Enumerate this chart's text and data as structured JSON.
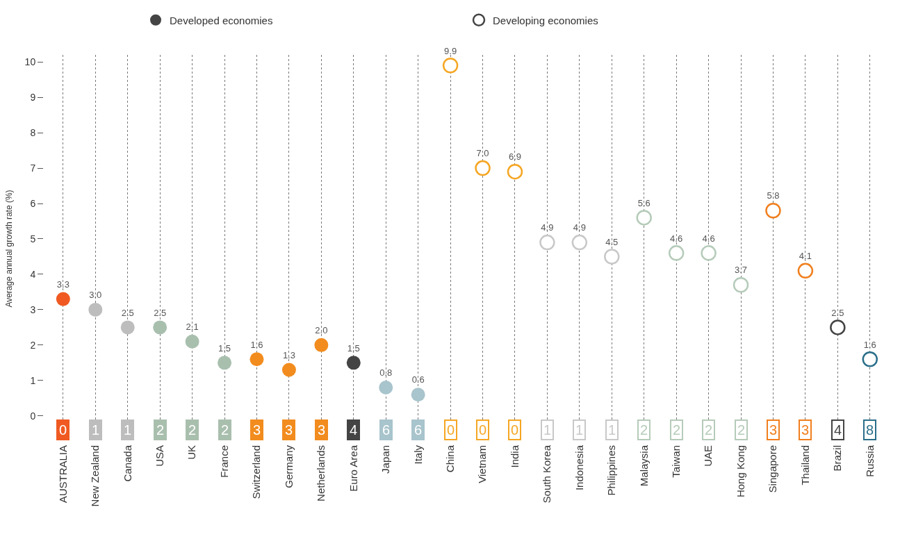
{
  "chart_data": {
    "type": "scatter",
    "ylabel": "Average annual growth rate (%)",
    "categories": [
      "AUSTRALIA",
      "New Zealand",
      "Canada",
      "USA",
      "UK",
      "France",
      "Switzerland",
      "Germany",
      "Netherlands",
      "Euro Area",
      "Japan",
      "Italy",
      "China",
      "Vietnam",
      "India",
      "South Korea",
      "Indonesia",
      "Philippines",
      "Malaysia",
      "Taiwan",
      "UAE",
      "Hong Kong",
      "Singapore",
      "Thailand",
      "Brazil",
      "Russia"
    ],
    "series": [
      {
        "name": "Developed economies",
        "color": "#444444",
        "values": [
          3.3,
          3.0,
          2.5,
          2.5,
          2.1,
          1.5,
          1.6,
          1.3,
          2.0,
          1.5,
          0.8,
          0.6,
          null,
          null,
          null,
          null,
          null,
          null,
          null,
          null,
          null,
          null,
          null,
          null,
          null,
          null
        ],
        "value_labels": [
          "3.3",
          "3.0",
          "2.5",
          "2.5",
          "2.1",
          "1.5",
          "1.6",
          "1.3",
          "2.0",
          "1.5",
          "0.8",
          "0.6",
          null,
          null,
          null,
          null,
          null,
          null,
          null,
          null,
          null,
          null,
          null,
          null,
          null,
          null
        ],
        "colors": [
          "#f05a22",
          "#bdbdbd",
          "#bdbdbd",
          "#a9bfae",
          "#a9bfae",
          "#a9bfae",
          "#f28c1e",
          "#f28c1e",
          "#f28c1e",
          "#444444",
          "#a8c4cc",
          "#a8c4cc",
          "#ffffff",
          "#ffffff",
          "#ffffff",
          "#ffffff",
          "#ffffff",
          "#ffffff",
          "#ffffff",
          "#ffffff",
          "#ffffff",
          "#ffffff",
          "#ffffff",
          "#ffffff",
          "#ffffff",
          "#ffffff"
        ]
      },
      {
        "name": "Developing economies",
        "color": "#444444",
        "values": [
          null,
          null,
          null,
          null,
          null,
          null,
          null,
          null,
          null,
          null,
          null,
          null,
          9.9,
          7.0,
          6.9,
          4.9,
          4.9,
          4.5,
          5.6,
          4.6,
          4.6,
          3.7,
          5.8,
          4.1,
          2.5,
          1.6
        ],
        "value_labels": [
          null,
          null,
          null,
          null,
          null,
          null,
          null,
          null,
          null,
          null,
          null,
          null,
          "9.9",
          "7.0",
          "6.9",
          "4.9",
          "4.9",
          "4.5",
          "5.6",
          "4.6",
          "4.6",
          "3.7",
          "5.8",
          "4.1",
          "2.5",
          "1.6"
        ],
        "colors": [
          "#ffffff",
          "#ffffff",
          "#ffffff",
          "#ffffff",
          "#ffffff",
          "#ffffff",
          "#ffffff",
          "#ffffff",
          "#ffffff",
          "#ffffff",
          "#ffffff",
          "#ffffff",
          "#f5a623",
          "#f5a623",
          "#f5a623",
          "#c8c8c8",
          "#c8c8c8",
          "#c8c8c8",
          "#b5cbb9",
          "#b5cbb9",
          "#b5cbb9",
          "#b5cbb9",
          "#f07f1e",
          "#f07f1e",
          "#444444",
          "#2a6f8a"
        ]
      }
    ],
    "ylim": [
      -0.75,
      10.2
    ],
    "yticks": [
      0,
      1,
      2,
      3,
      4,
      5,
      6,
      7,
      8,
      9,
      10
    ],
    "grid": "x",
    "legend": "top",
    "marker": "circle",
    "annotations": [
      {
        "text": "0",
        "x": "AUSTRALIA",
        "y": -0.4
      },
      {
        "text": "1",
        "x": "New Zealand",
        "y": -0.4
      },
      {
        "text": "1",
        "x": "Canada",
        "y": -0.4
      },
      {
        "text": "2",
        "x": "USA",
        "y": -0.4
      },
      {
        "text": "2",
        "x": "UK",
        "y": -0.4
      },
      {
        "text": "2",
        "x": "France",
        "y": -0.4
      },
      {
        "text": "3",
        "x": "Switzerland",
        "y": -0.4
      },
      {
        "text": "3",
        "x": "Germany",
        "y": -0.4
      },
      {
        "text": "3",
        "x": "Netherlands",
        "y": -0.4
      },
      {
        "text": "4",
        "x": "Euro Area",
        "y": -0.4
      },
      {
        "text": "6",
        "x": "Japan",
        "y": -0.4
      },
      {
        "text": "6",
        "x": "Italy",
        "y": -0.4
      },
      {
        "text": "0",
        "x": "China",
        "y": -0.4
      },
      {
        "text": "0",
        "x": "Vietnam",
        "y": -0.4
      },
      {
        "text": "0",
        "x": "India",
        "y": -0.4
      },
      {
        "text": "1",
        "x": "South Korea",
        "y": -0.4
      },
      {
        "text": "1",
        "x": "Indonesia",
        "y": -0.4
      },
      {
        "text": "1",
        "x": "Philippines",
        "y": -0.4
      },
      {
        "text": "2",
        "x": "Malaysia",
        "y": -0.4
      },
      {
        "text": "2",
        "x": "Taiwan",
        "y": -0.4
      },
      {
        "text": "2",
        "x": "UAE",
        "y": -0.4
      },
      {
        "text": "2",
        "x": "Hong Kong",
        "y": -0.4
      },
      {
        "text": "3",
        "x": "Singapore",
        "y": -0.4
      },
      {
        "text": "3",
        "x": "Thailand",
        "y": -0.4
      },
      {
        "text": "4",
        "x": "Brazil",
        "y": -0.4
      },
      {
        "text": "8",
        "x": "Russia",
        "y": -0.4
      }
    ]
  }
}
